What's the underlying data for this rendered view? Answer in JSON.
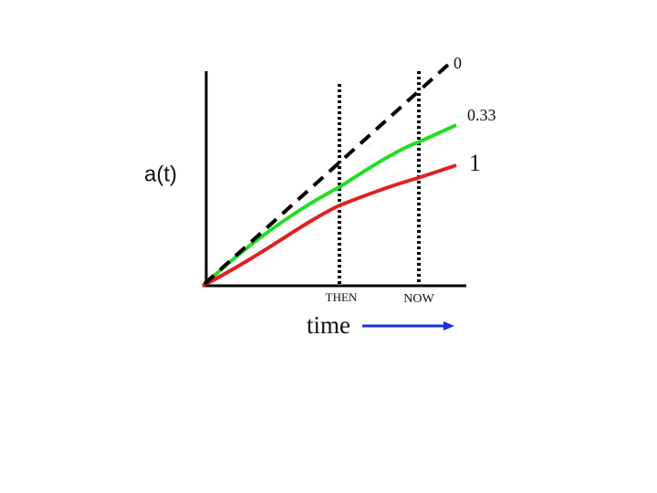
{
  "y_label": "a(t)",
  "x_label": "time",
  "markers": [
    "THEN",
    "NOW"
  ],
  "curves": [
    {
      "label": "0"
    },
    {
      "label": "0.33"
    },
    {
      "label": "1"
    }
  ]
}
